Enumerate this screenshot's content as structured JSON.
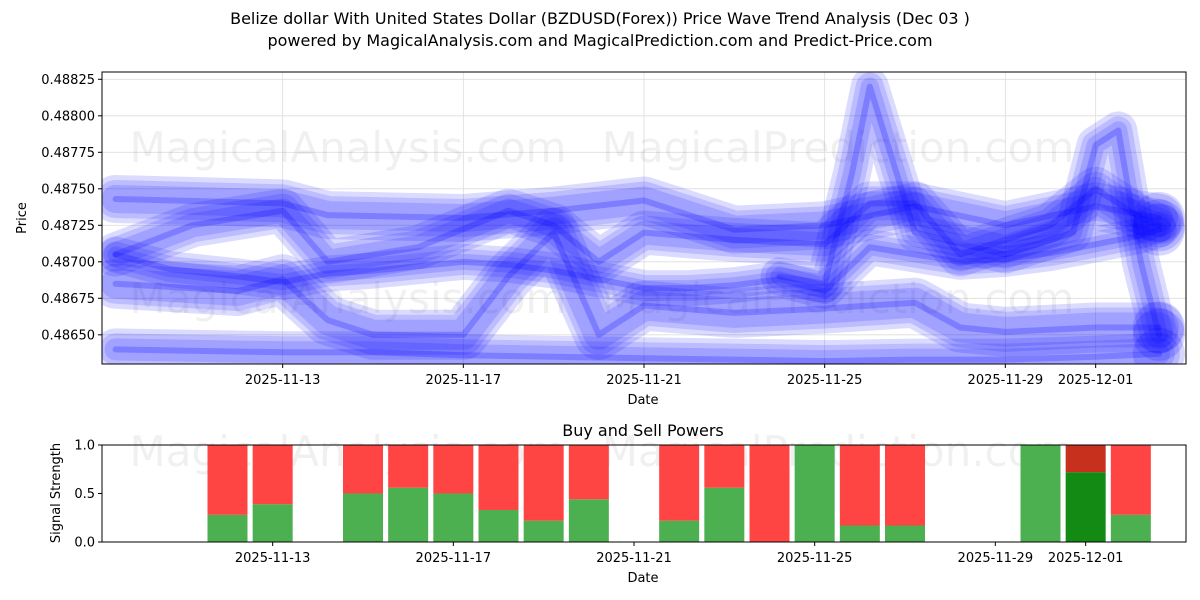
{
  "header": {
    "title": "Belize dollar With United States Dollar (BZDUSD(Forex)) Price Wave Trend Analysis (Dec 03 )",
    "subtitle": "powered by MagicalAnalysis.com and MagicalPrediction.com and Predict-Price.com"
  },
  "watermarks": [
    "MagicalAnalysis.com",
    "MagicalPrediction.com"
  ],
  "colors": {
    "wave": "#0000ff",
    "buy": "#4caf50",
    "buy_strong": "#138a13",
    "sell": "#ff4444",
    "sell_strong": "#c8301e"
  },
  "chart_data": [
    {
      "type": "line",
      "title": "",
      "xlabel": "Date",
      "ylabel": "Price",
      "x_tick_labels": [
        "2025-11-13",
        "2025-11-17",
        "2025-11-21",
        "2025-11-25",
        "2025-11-29",
        "2025-12-01"
      ],
      "x_tick_days": [
        13,
        17,
        21,
        25,
        29,
        31
      ],
      "xlim_days": [
        9.0,
        33.0
      ],
      "ylim": [
        0.4863,
        0.4883
      ],
      "y_ticks": [
        "0.48650",
        "0.48675",
        "0.48700",
        "0.48725",
        "0.48750",
        "0.48775",
        "0.48800",
        "0.48825"
      ],
      "y_tick_values": [
        0.4865,
        0.48675,
        0.487,
        0.48725,
        0.4875,
        0.48775,
        0.488,
        0.48825
      ],
      "grid": true,
      "series": [
        {
          "name": "wave-upper-band",
          "days": [
            9.3,
            13,
            14,
            17,
            19,
            21,
            23,
            25,
            27,
            29,
            31,
            32.4
          ],
          "values": [
            0.48743,
            0.4874,
            0.48732,
            0.4873,
            0.48735,
            0.48742,
            0.48722,
            0.48725,
            0.48738,
            0.48725,
            0.48738,
            0.4873
          ]
        },
        {
          "name": "wave-lower-band",
          "days": [
            9.3,
            13,
            15,
            17,
            19,
            21,
            23,
            25,
            27,
            29,
            31,
            32.4
          ],
          "values": [
            0.4864,
            0.48638,
            0.48638,
            0.48636,
            0.48635,
            0.48634,
            0.48633,
            0.48632,
            0.48633,
            0.48633,
            0.48635,
            0.48637
          ]
        },
        {
          "name": "wave-trend-main",
          "days": [
            9.3,
            10.5,
            12,
            13,
            14,
            15,
            16,
            17,
            18,
            19,
            20,
            21,
            22,
            23,
            24,
            25,
            26,
            27,
            28,
            29,
            30,
            31,
            32,
            32.4
          ],
          "values": [
            0.48705,
            0.48695,
            0.4869,
            0.48686,
            0.48692,
            0.48694,
            0.48697,
            0.487,
            0.48698,
            0.48694,
            0.48688,
            0.48682,
            0.48682,
            0.48684,
            0.48688,
            0.4868,
            0.4871,
            0.48705,
            0.487,
            0.48702,
            0.48706,
            0.48712,
            0.48718,
            0.48722
          ]
        },
        {
          "name": "wave-low-cycle",
          "days": [
            9.3,
            12,
            13,
            14,
            15,
            17,
            18,
            19,
            20,
            21,
            23,
            25,
            27,
            28,
            29,
            31,
            32.4
          ],
          "values": [
            0.48685,
            0.4868,
            0.48688,
            0.4866,
            0.4865,
            0.4865,
            0.4869,
            0.4872,
            0.4865,
            0.4867,
            0.48665,
            0.48668,
            0.48672,
            0.48655,
            0.48652,
            0.48655,
            0.48655
          ]
        },
        {
          "name": "wave-high-cycle",
          "days": [
            9.3,
            11,
            13,
            14,
            16,
            18,
            19,
            20,
            21,
            23,
            25,
            26,
            27,
            28,
            29,
            30,
            31,
            32,
            32.4
          ],
          "values": [
            0.48705,
            0.48725,
            0.48735,
            0.487,
            0.4871,
            0.48735,
            0.48725,
            0.487,
            0.4872,
            0.48715,
            0.48712,
            0.4874,
            0.4874,
            0.48705,
            0.48715,
            0.48725,
            0.4875,
            0.4873,
            0.48725
          ]
        },
        {
          "name": "wave-spike",
          "days": [
            24,
            25,
            25.6,
            26,
            27,
            29,
            30.5,
            31,
            31.5,
            32,
            32.4
          ],
          "values": [
            0.4869,
            0.48685,
            0.4876,
            0.4882,
            0.4872,
            0.48705,
            0.4872,
            0.4878,
            0.4879,
            0.487,
            0.4865
          ]
        }
      ]
    },
    {
      "type": "bar",
      "title": "Buy and Sell Powers",
      "xlabel": "Date",
      "ylabel": "Signal Strength",
      "ylim": [
        0.0,
        1.0
      ],
      "y_ticks": [
        "0.0",
        "0.5",
        "1.0"
      ],
      "y_tick_values": [
        0.0,
        0.5,
        1.0
      ],
      "x_tick_labels": [
        "2025-11-13",
        "2025-11-17",
        "2025-11-21",
        "2025-11-25",
        "2025-11-29",
        "2025-12-01"
      ],
      "x_tick_days": [
        13,
        17,
        21,
        25,
        29,
        31
      ],
      "xlim_days": [
        9.0,
        33.0
      ],
      "grid": false,
      "bars": [
        {
          "day": 12,
          "buy": 0.28,
          "sell": 0.72
        },
        {
          "day": 13,
          "buy": 0.39,
          "sell": 0.61
        },
        {
          "day": 15,
          "buy": 0.5,
          "sell": 0.5
        },
        {
          "day": 16,
          "buy": 0.56,
          "sell": 0.44
        },
        {
          "day": 17,
          "buy": 0.5,
          "sell": 0.5
        },
        {
          "day": 18,
          "buy": 0.33,
          "sell": 0.67
        },
        {
          "day": 19,
          "buy": 0.22,
          "sell": 0.78
        },
        {
          "day": 20,
          "buy": 0.44,
          "sell": 0.56
        },
        {
          "day": 22,
          "buy": 0.22,
          "sell": 0.78
        },
        {
          "day": 23,
          "buy": 0.56,
          "sell": 0.44
        },
        {
          "day": 24,
          "buy": 0.0,
          "sell": 1.0
        },
        {
          "day": 25,
          "buy": 1.0,
          "sell": 0.0
        },
        {
          "day": 26,
          "buy": 0.17,
          "sell": 0.83
        },
        {
          "day": 27,
          "buy": 0.17,
          "sell": 0.83
        },
        {
          "day": 30,
          "buy": 1.0,
          "sell": 0.0
        },
        {
          "day": 31,
          "buy": 0.72,
          "sell": 0.28,
          "strong": true
        },
        {
          "day": 32,
          "buy": 0.28,
          "sell": 0.72
        }
      ]
    }
  ]
}
